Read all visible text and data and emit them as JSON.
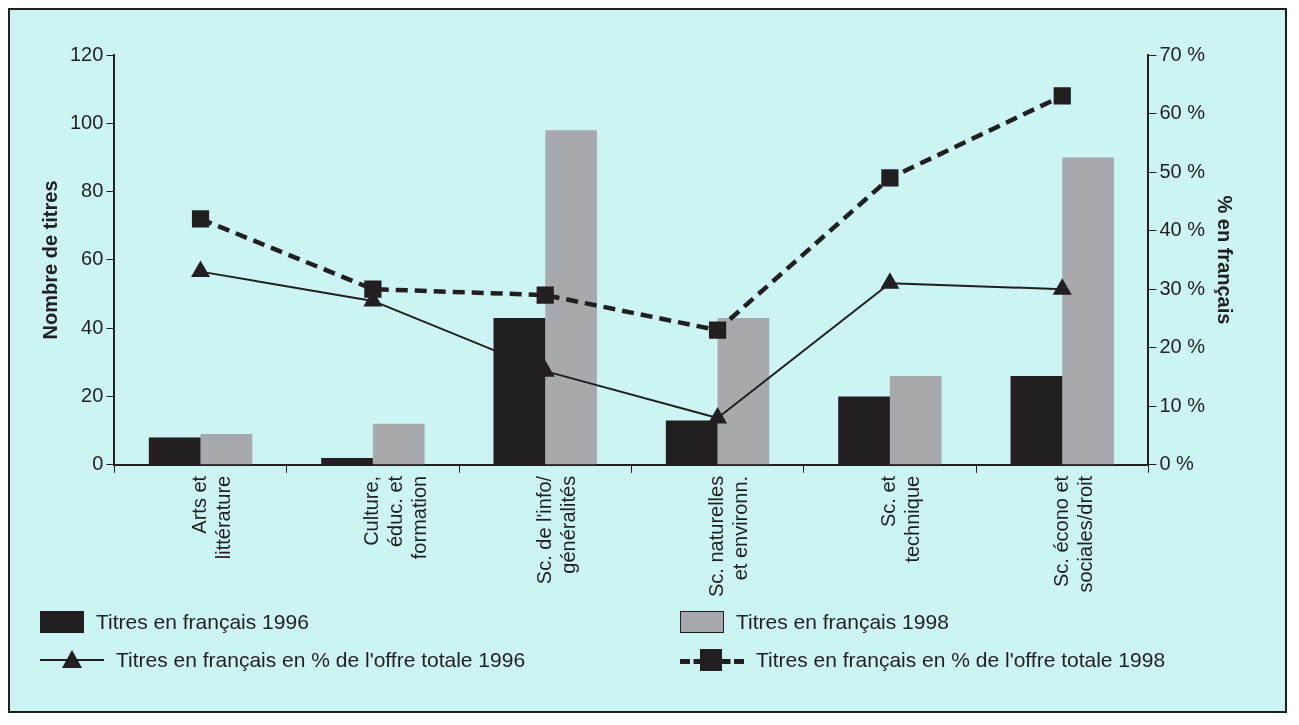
{
  "chart_data": {
    "type": "bar",
    "ylabel": "Nombre de titres",
    "y2label": "% en français",
    "categories": [
      "Arts et\nlittérature",
      "Culture,\néduc. et\nformation",
      "Sc. de l'info/\ngénéralités",
      "Sc. naturelles\net environn.",
      "Sc. et\ntechnique",
      "Sc. écono et\nsociales/droit"
    ],
    "series": [
      {
        "name": "Titres en français 1996",
        "color": "#231f20",
        "values": [
          8,
          2,
          43,
          13,
          20,
          26
        ]
      },
      {
        "name": "Titres en français 1998",
        "color": "#a7a9ac",
        "values": [
          9,
          12,
          98,
          43,
          26,
          90
        ]
      },
      {
        "name": "Titres en français en % de l'offre totale 1996",
        "type": "line",
        "axis": "y2",
        "color": "#231f20",
        "marker": "triangle",
        "line_style": "solid",
        "values": [
          33,
          28,
          16,
          8,
          31,
          30
        ]
      },
      {
        "name": "Titres en français en % de l'offre totale 1998",
        "type": "line",
        "axis": "y2",
        "color": "#231f20",
        "marker": "square",
        "line_style": "dashed",
        "values": [
          42,
          30,
          29,
          23,
          49,
          63
        ]
      }
    ],
    "ylim": [
      0,
      120
    ],
    "yticks": [
      0,
      20,
      40,
      60,
      80,
      100,
      120
    ],
    "y2lim": [
      0,
      70
    ],
    "y2ticks": [
      {
        "value": 0,
        "label": "0 %"
      },
      {
        "value": 10,
        "label": "10 %"
      },
      {
        "value": 20,
        "label": "20 %"
      },
      {
        "value": 30,
        "label": "30 %"
      },
      {
        "value": 40,
        "label": "40 %"
      },
      {
        "value": 50,
        "label": "50 %"
      },
      {
        "value": 60,
        "label": "60 %"
      },
      {
        "value": 70,
        "label": "70 %"
      }
    ],
    "grid": false,
    "legend": "bottom"
  }
}
